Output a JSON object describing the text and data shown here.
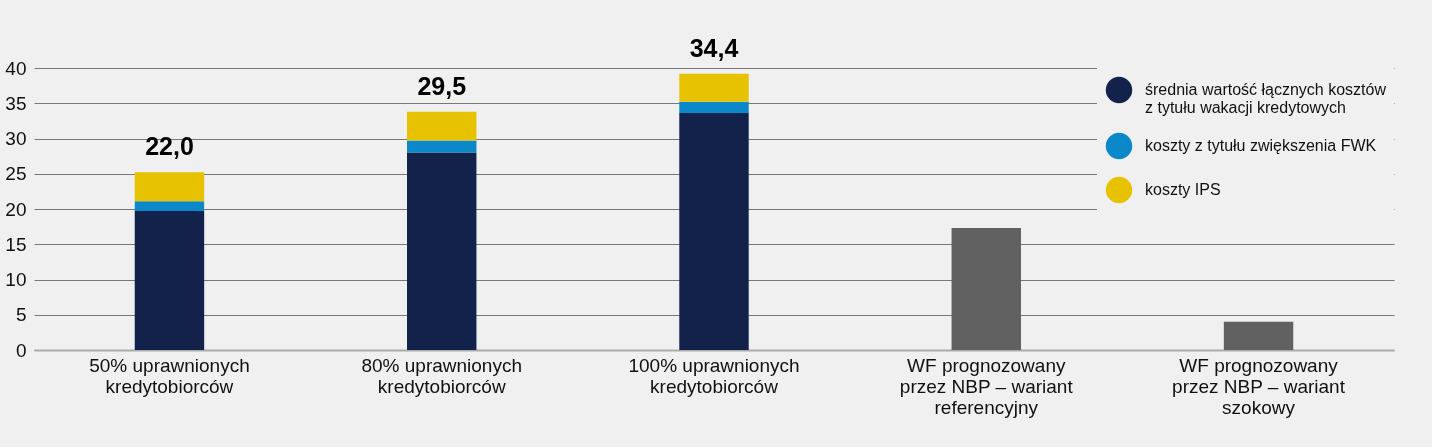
{
  "chart_data": {
    "type": "bar",
    "stacked": true,
    "categories": [
      "50% uprawnionych kredytobiorców",
      "80% uprawnionych kredytobiorców",
      "100% uprawnionych kredytobiorców",
      "WF prognozowany przez NBP – wariant referencyjny",
      "WF prognozowany przez NBP – wariant szokowy"
    ],
    "series": [
      {
        "name": "średnia wartość łącznych kosztów z tytułu wakacji kredytowych",
        "color": "#12224b",
        "values": [
          19.7,
          28.0,
          33.6,
          null,
          null
        ]
      },
      {
        "name": "koszty z tytułu zwiększenia FWK",
        "color": "#0a88c9",
        "values": [
          1.4,
          1.7,
          1.6,
          null,
          null
        ]
      },
      {
        "name": "koszty IPS",
        "color": "#e6c200",
        "values": [
          4.1,
          4.1,
          4.0,
          null,
          null
        ]
      },
      {
        "color": "#616161",
        "values": [
          null,
          null,
          null,
          17.3,
          4.0
        ]
      }
    ],
    "annotations": [
      {
        "text": "22,0",
        "x": "50% uprawnionych kredytobiorców",
        "y": 25.2
      },
      {
        "text": "29,5",
        "x": "80% uprawnionych kredytobiorców",
        "y": 33.8
      },
      {
        "text": "34,4",
        "x": "100% uprawnionych kredytobiorców",
        "y": 39.2
      }
    ],
    "ylim": [
      0,
      40
    ],
    "yticks": [
      0,
      5,
      10,
      15,
      20,
      25,
      30,
      35,
      40
    ],
    "grid": "y",
    "legend": "top right"
  }
}
